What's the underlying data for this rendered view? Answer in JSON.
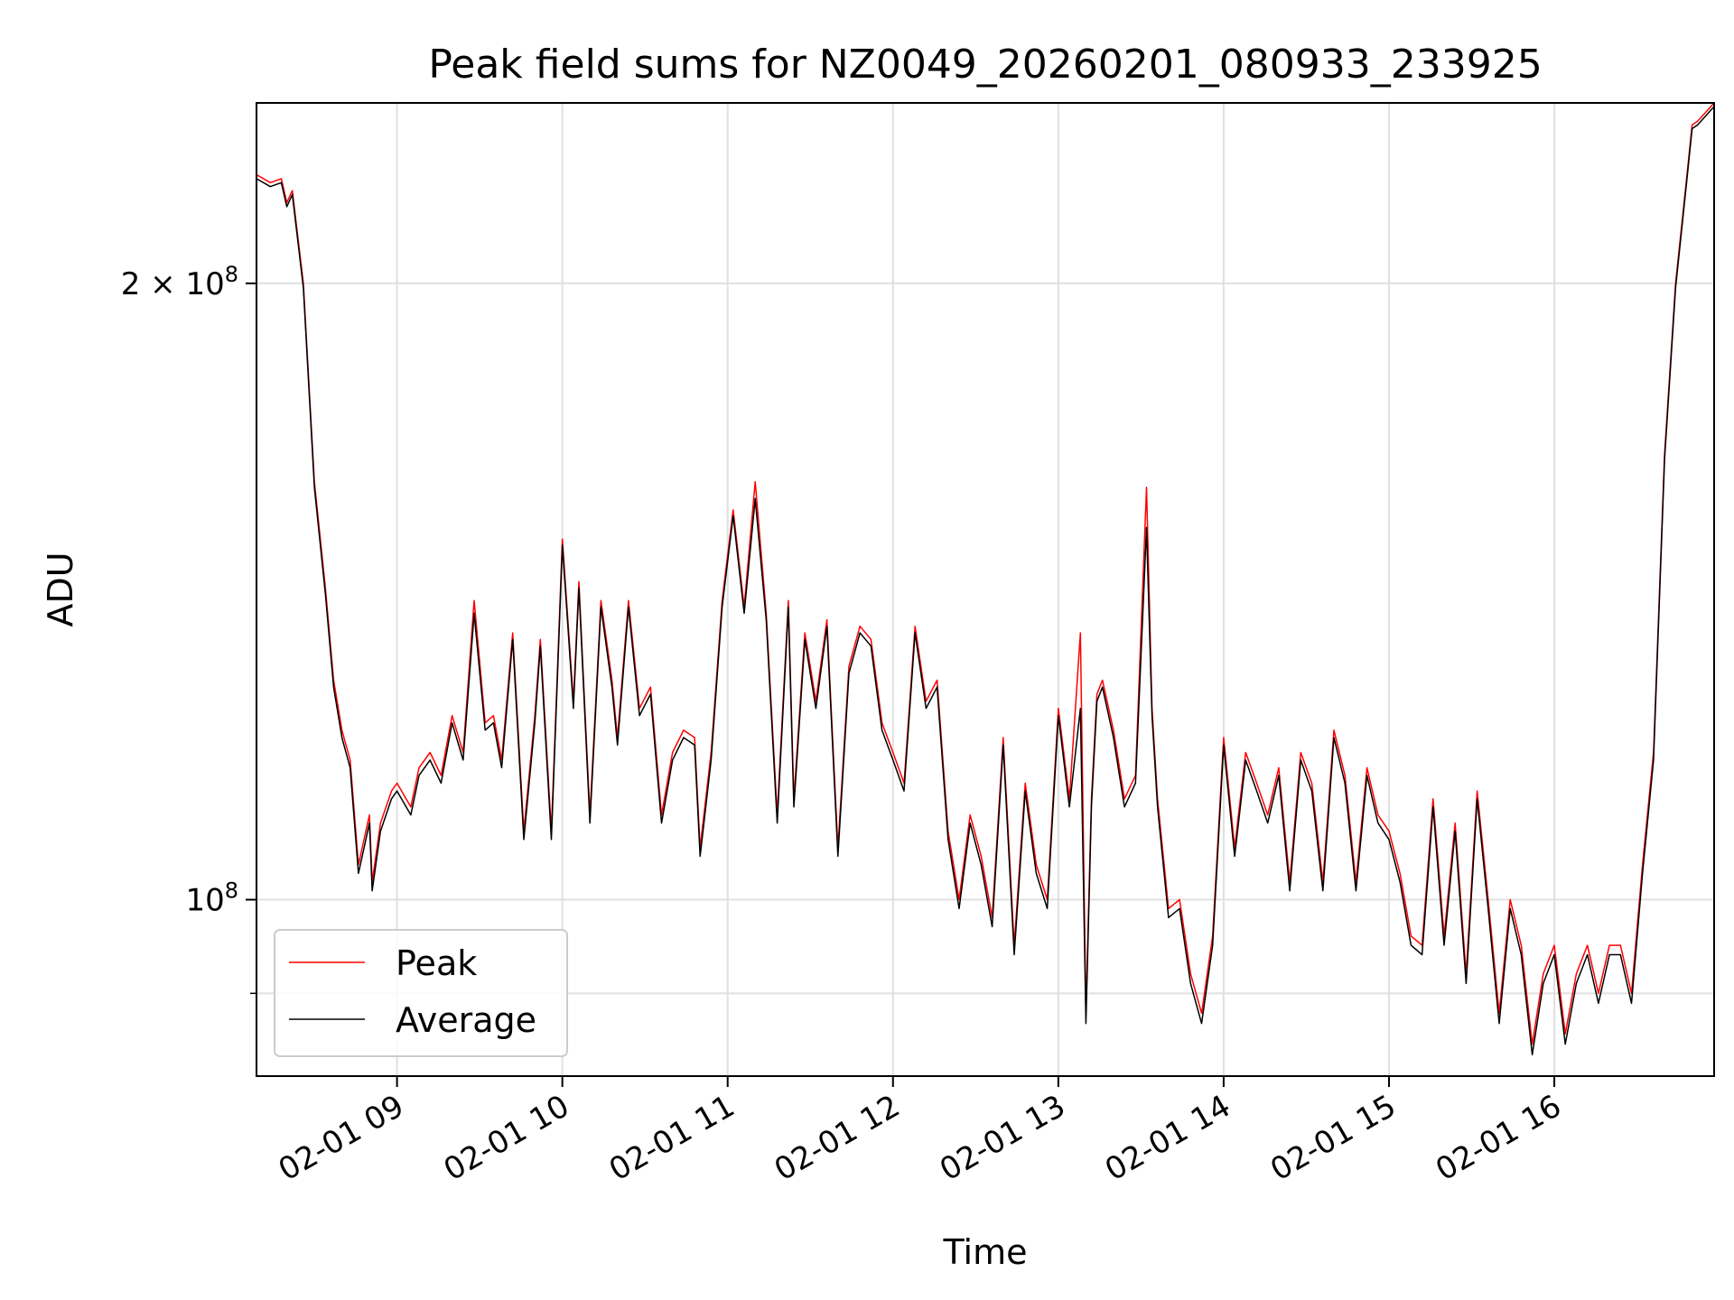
{
  "chart_data": {
    "type": "line",
    "title": "Peak field sums for NZ0049_20260201_080933_233925",
    "xlabel": "Time",
    "ylabel": "ADU",
    "x_ticks": [
      "02-01 09",
      "02-01 10",
      "02-01 11",
      "02-01 12",
      "02-01 13",
      "02-01 14",
      "02-01 15",
      "02-01 16"
    ],
    "y_ticks": [
      {
        "value": 100000000,
        "base": "10",
        "exp": "8",
        "mantissa": ""
      },
      {
        "value": 200000000,
        "base": "10",
        "exp": "8",
        "mantissa": "2 × "
      }
    ],
    "y_scale": "log",
    "y_minor_tick_values": [
      90000000
    ],
    "xlim": [
      "02-01 08:09",
      "02-01 16:58"
    ],
    "ylim": [
      82000000,
      245000000
    ],
    "grid": true,
    "legend_placement": "lower-left",
    "colors": {
      "Peak": "#ff0000",
      "Average": "#000000",
      "grid": "#e0e0e0"
    },
    "series": [
      {
        "name": "Peak",
        "x": [
          "08:09",
          "08:14",
          "08:18",
          "08:20",
          "08:22",
          "08:26",
          "08:30",
          "08:34",
          "08:37",
          "08:40",
          "08:43",
          "08:46",
          "08:50",
          "08:51",
          "08:54",
          "08:58",
          "09:00",
          "09:05",
          "09:08",
          "09:12",
          "09:16",
          "09:20",
          "09:24",
          "09:28",
          "09:32",
          "09:35",
          "09:38",
          "09:42",
          "09:46",
          "09:50",
          "09:52",
          "09:56",
          "10:00",
          "10:02",
          "10:04",
          "10:06",
          "10:10",
          "10:14",
          "10:18",
          "10:20",
          "10:24",
          "10:28",
          "10:32",
          "10:36",
          "10:40",
          "10:44",
          "10:48",
          "10:50",
          "10:54",
          "10:58",
          "11:02",
          "11:06",
          "11:10",
          "11:14",
          "11:18",
          "11:22",
          "11:24",
          "11:28",
          "11:32",
          "11:36",
          "11:40",
          "11:44",
          "11:48",
          "11:52",
          "11:56",
          "12:00",
          "12:04",
          "12:08",
          "12:12",
          "12:16",
          "12:20",
          "12:24",
          "12:28",
          "12:32",
          "12:36",
          "12:40",
          "12:44",
          "12:48",
          "12:52",
          "12:56",
          "13:00",
          "13:04",
          "13:08",
          "13:10",
          "13:12",
          "13:14",
          "13:16",
          "13:20",
          "13:24",
          "13:28",
          "13:32",
          "13:34",
          "13:36",
          "13:40",
          "13:44",
          "13:48",
          "13:52",
          "13:56",
          "14:00",
          "14:04",
          "14:08",
          "14:12",
          "14:16",
          "14:20",
          "14:24",
          "14:28",
          "14:32",
          "14:36",
          "14:40",
          "14:44",
          "14:48",
          "14:52",
          "14:56",
          "15:00",
          "15:04",
          "15:08",
          "15:12",
          "15:16",
          "15:20",
          "15:24",
          "15:28",
          "15:32",
          "15:36",
          "15:40",
          "15:44",
          "15:48",
          "15:52",
          "15:56",
          "16:00",
          "16:04",
          "16:08",
          "16:12",
          "16:16",
          "16:20",
          "16:24",
          "16:28",
          "16:32",
          "16:36",
          "16:40",
          "16:44",
          "16:48",
          "16:50",
          "16:52",
          "16:58"
        ],
        "values": [
          226,
          224,
          225,
          219,
          222,
          200,
          160,
          142,
          128,
          121,
          117,
          104,
          110,
          102,
          109,
          113,
          114,
          111,
          116,
          118,
          115,
          123,
          118,
          140,
          122,
          123,
          117,
          135,
          108,
          123,
          134,
          108,
          150,
          137,
          125,
          143,
          110,
          140,
          128,
          120,
          140,
          124,
          127,
          110,
          118,
          121,
          120,
          106,
          118,
          140,
          155,
          139,
          160,
          138,
          110,
          140,
          112,
          135,
          125,
          137,
          106,
          130,
          136,
          134,
          122,
          118,
          114,
          136,
          125,
          128,
          108,
          100,
          110,
          105,
          98,
          120,
          95,
          114,
          104,
          100,
          124,
          112,
          135,
          88,
          112,
          126,
          128,
          121,
          112,
          115,
          159,
          124,
          112,
          99,
          100,
          92,
          88,
          96,
          120,
          106,
          118,
          114,
          110,
          116,
          102,
          118,
          114,
          102,
          121,
          115,
          102,
          116,
          110,
          108,
          103,
          96,
          95,
          112,
          96,
          109,
          92,
          113,
          100,
          88,
          100,
          95,
          85,
          92,
          95,
          86,
          92,
          95,
          90,
          95,
          95,
          90,
          104,
          118,
          165,
          200,
          225,
          239,
          240,
          245
        ]
      },
      {
        "name": "Average",
        "x": [
          "08:09",
          "08:14",
          "08:18",
          "08:20",
          "08:22",
          "08:26",
          "08:30",
          "08:34",
          "08:37",
          "08:40",
          "08:43",
          "08:46",
          "08:50",
          "08:51",
          "08:54",
          "08:58",
          "09:00",
          "09:05",
          "09:08",
          "09:12",
          "09:16",
          "09:20",
          "09:24",
          "09:28",
          "09:32",
          "09:35",
          "09:38",
          "09:42",
          "09:46",
          "09:50",
          "09:52",
          "09:56",
          "10:00",
          "10:02",
          "10:04",
          "10:06",
          "10:10",
          "10:14",
          "10:18",
          "10:20",
          "10:24",
          "10:28",
          "10:32",
          "10:36",
          "10:40",
          "10:44",
          "10:48",
          "10:50",
          "10:54",
          "10:58",
          "11:02",
          "11:06",
          "11:10",
          "11:14",
          "11:18",
          "11:22",
          "11:24",
          "11:28",
          "11:32",
          "11:36",
          "11:40",
          "11:44",
          "11:48",
          "11:52",
          "11:56",
          "12:00",
          "12:04",
          "12:08",
          "12:12",
          "12:16",
          "12:20",
          "12:24",
          "12:28",
          "12:32",
          "12:36",
          "12:40",
          "12:44",
          "12:48",
          "12:52",
          "12:56",
          "13:00",
          "13:04",
          "13:08",
          "13:10",
          "13:12",
          "13:14",
          "13:16",
          "13:20",
          "13:24",
          "13:28",
          "13:32",
          "13:34",
          "13:36",
          "13:40",
          "13:44",
          "13:48",
          "13:52",
          "13:56",
          "14:00",
          "14:04",
          "14:08",
          "14:12",
          "14:16",
          "14:20",
          "14:24",
          "14:28",
          "14:32",
          "14:36",
          "14:40",
          "14:44",
          "14:48",
          "14:52",
          "14:56",
          "15:00",
          "15:04",
          "15:08",
          "15:12",
          "15:16",
          "15:20",
          "15:24",
          "15:28",
          "15:32",
          "15:36",
          "15:40",
          "15:44",
          "15:48",
          "15:52",
          "15:56",
          "16:00",
          "16:04",
          "16:08",
          "16:12",
          "16:16",
          "16:20",
          "16:24",
          "16:28",
          "16:32",
          "16:36",
          "16:40",
          "16:44",
          "16:48",
          "16:50",
          "16:52",
          "16:58"
        ],
        "values": [
          225,
          223,
          224,
          218,
          221,
          199,
          159,
          141,
          127,
          120,
          116,
          103,
          109,
          101,
          108,
          112,
          113,
          110,
          115,
          117,
          114,
          122,
          117,
          138,
          121,
          122,
          116,
          134,
          107,
          122,
          133,
          107,
          149,
          136,
          124,
          142,
          109,
          139,
          127,
          119,
          139,
          123,
          126,
          109,
          117,
          120,
          119,
          105,
          117,
          139,
          154,
          138,
          157,
          137,
          109,
          139,
          111,
          134,
          124,
          136,
          105,
          129,
          135,
          133,
          121,
          117,
          113,
          135,
          124,
          127,
          107,
          99,
          109,
          104,
          97,
          119,
          94,
          113,
          103,
          99,
          123,
          111,
          124,
          87,
          111,
          125,
          127,
          120,
          111,
          114,
          152,
          123,
          111,
          98,
          99,
          91,
          87,
          95,
          119,
          105,
          117,
          113,
          109,
          115,
          101,
          117,
          113,
          101,
          120,
          114,
          101,
          115,
          109,
          107,
          102,
          95,
          94,
          111,
          95,
          108,
          91,
          112,
          99,
          87,
          99,
          94,
          84,
          91,
          94,
          85,
          91,
          94,
          89,
          94,
          94,
          89,
          103,
          117,
          164,
          199,
          224,
          238,
          239,
          244
        ]
      }
    ]
  }
}
